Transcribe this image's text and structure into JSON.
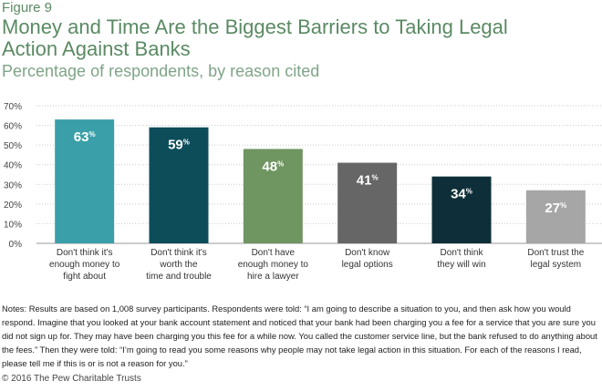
{
  "figure_label": "Figure 9",
  "title": "Money and Time Are the Biggest Barriers to Taking Legal Action Against Banks",
  "subtitle": "Percentage of respondents, by reason cited",
  "chart_data": {
    "type": "bar",
    "title": "Money and Time Are the Biggest Barriers to Taking Legal Action Against Banks",
    "subtitle": "Percentage of respondents, by reason cited",
    "categories": [
      [
        "Don't think it's",
        "enough money to",
        "fight about"
      ],
      [
        "Don't think it's",
        "worth the",
        "time and trouble"
      ],
      [
        "Don't have",
        "enough money to",
        "hire a lawyer"
      ],
      [
        "Don't know",
        "legal options"
      ],
      [
        "Don't think",
        "they will win"
      ],
      [
        "Don't trust the",
        "legal system"
      ]
    ],
    "values": [
      63,
      59,
      48,
      41,
      34,
      27
    ],
    "value_labels": [
      "63",
      "59",
      "48",
      "41",
      "34",
      "27"
    ],
    "value_suffix": "%",
    "colors": [
      "#3a9fa8",
      "#0d4d5a",
      "#6f9560",
      "#666666",
      "#0e2f39",
      "#a6a6a6"
    ],
    "yticks": [
      "0%",
      "10%",
      "20%",
      "30%",
      "40%",
      "50%",
      "60%",
      "70%"
    ],
    "ylim": [
      0,
      70
    ],
    "grid": true,
    "grid_color": "#cccccc"
  },
  "notes": "Notes: Results are based on 1,008 survey participants. Respondents were told: “I am going to describe a situation to you, and then ask how you would respond. Imagine that you looked at your bank account statement and noticed that your bank had been charging you a fee for a service that you are sure you did not sign up for. They may have been charging you this fee for a while now. You called the customer service line, but the bank refused to do anything about the fees.” Then they were told: “I’m going to read you some reasons why people may not take legal action in this situation. For each of the reasons I read, please tell me if this is or is not a reason for you.”",
  "copyright": "© 2016 The Pew Charitable Trusts"
}
